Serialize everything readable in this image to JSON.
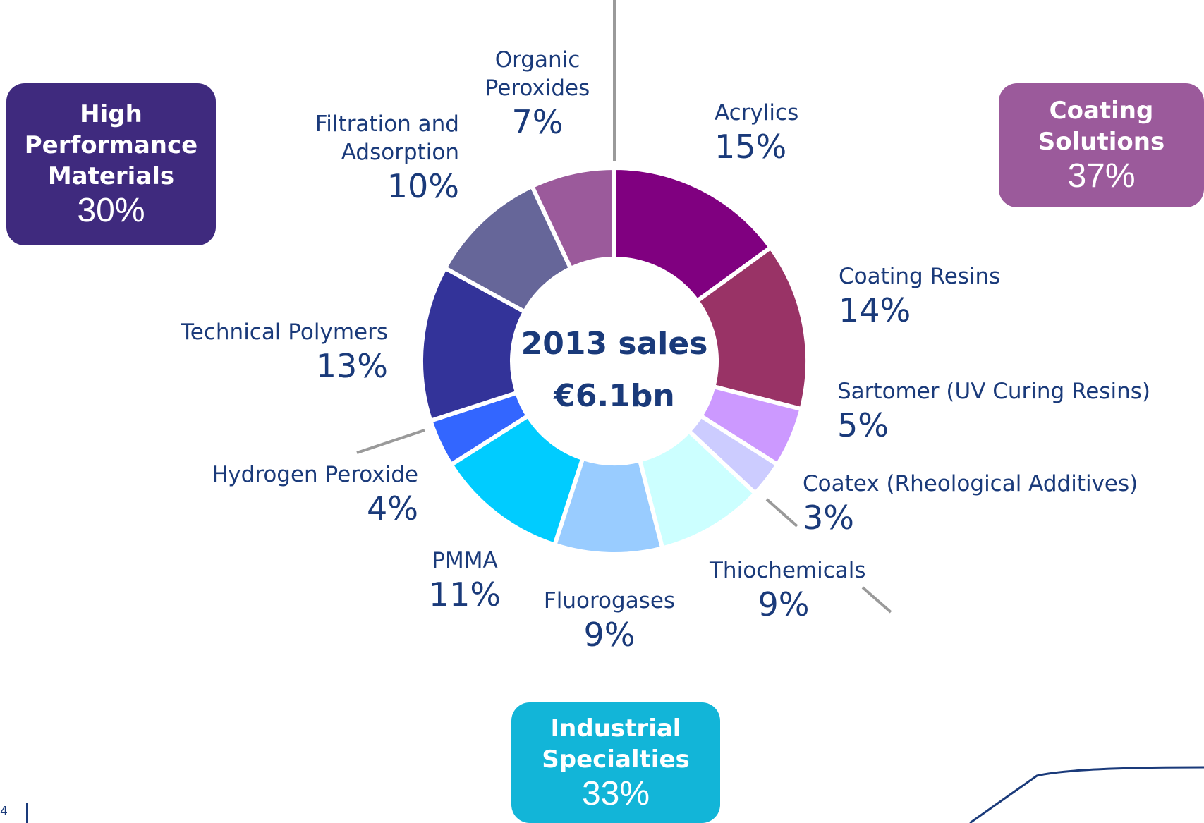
{
  "chart_data": {
    "type": "donut",
    "center_title": "2013 sales",
    "center_value": "€6.1bn",
    "categories": [
      "Acrylics",
      "Coating Resins",
      "Sartomer (UV Curing Resins)",
      "Coatex (Rheological Additives)",
      "Thiochemicals",
      "Fluorogases",
      "PMMA",
      "Hydrogen Peroxide",
      "Technical Polymers",
      "Filtration and Adsorption",
      "Organic Peroxides"
    ],
    "values": [
      15,
      14,
      5,
      3,
      9,
      9,
      11,
      4,
      13,
      10,
      7
    ],
    "value_labels": [
      "15%",
      "14%",
      "5%",
      "3%",
      "9%",
      "9%",
      "11%",
      "4%",
      "13%",
      "10%",
      "7%"
    ],
    "colors": [
      "#800080",
      "#993366",
      "#cc99ff",
      "#ccccff",
      "#ccffff",
      "#99ccff",
      "#00ccff",
      "#3366ff",
      "#333399",
      "#666699",
      "#9b5a9b"
    ],
    "groups": [
      {
        "name": "High Performance Materials",
        "value": 30,
        "value_label": "30%",
        "color": "#3f2a7e"
      },
      {
        "name": "Coating Solutions",
        "value": 37,
        "value_label": "37%",
        "color": "#9b5a9b"
      },
      {
        "name": "Industrial Specialties",
        "value": 33,
        "value_label": "33%",
        "color": "#12b5d8"
      }
    ]
  },
  "page_number": "4"
}
